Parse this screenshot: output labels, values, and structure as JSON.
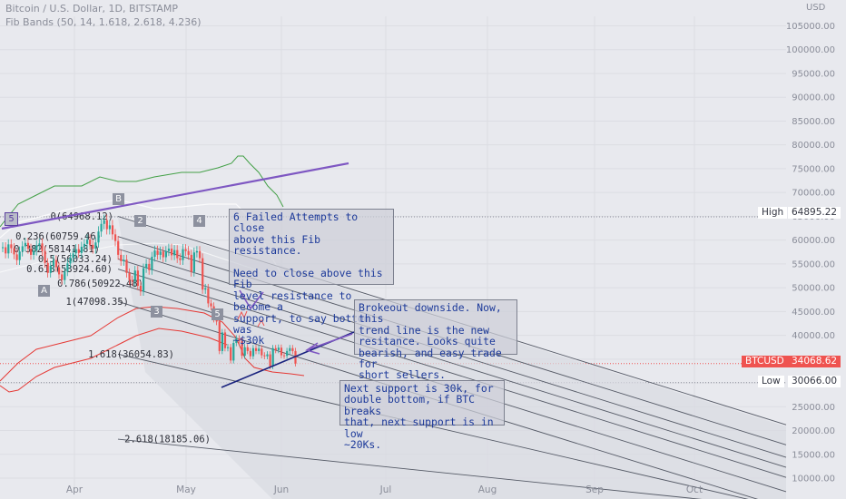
{
  "header": {
    "title": "Bitcoin / U.S. Dollar, 1D, BITSTAMP",
    "indicator": "Fib Bands (50, 14, 1.618, 2.618, 4.236)",
    "currency": "USD"
  },
  "colors": {
    "background": "#e8e9ee",
    "candle_up": "#26a69a",
    "candle_down": "#ef5350",
    "upper_band": "#43a047",
    "lower_band": "#e53935",
    "trendline_purple": "#7e57c2",
    "trendline_navy": "#1a237e",
    "annotation_text": "#1d3a9a",
    "fib_line": "#555a66"
  },
  "annotations": {
    "fib_resistance": "6 Failed Attempts to close\nabove this Fib resistance.\n\nNeed to close above this Fib\nlevel resistance to become a\nsupport, to say bottom was\n~$30k",
    "breakout": "Brokeout downside. Now, this\ntrend line is the new\nresitance. Looks quite\nbearish, and easy trade for\nshort sellers.",
    "next_support": "Next support is 30k, for\ndouble bottom, if BTC breaks\nthat, next support is in low\n~20Ks."
  },
  "wave_labels": [
    "5",
    "B",
    "2",
    "4",
    "A",
    "3",
    "5"
  ],
  "price_labels": {
    "high_label": "High",
    "high_value": "64895.22",
    "symbol": "BTCUSD",
    "last_value": "34068.62",
    "low_label": "Low",
    "low_value": "30066.00"
  },
  "chart_data": {
    "type": "line",
    "title": "Bitcoin / U.S. Dollar, 1D, BITSTAMP",
    "xlabel": "",
    "ylabel": "",
    "ylim": [
      10000,
      107000
    ],
    "grid": true,
    "x_tick_labels": [
      "Apr",
      "May",
      "Jun",
      "Jul",
      "Aug",
      "Sep",
      "Oct"
    ],
    "y_tick_labels": [
      "105000.00",
      "100000.00",
      "95000.00",
      "90000.00",
      "85000.00",
      "80000.00",
      "75000.00",
      "70000.00",
      "65000.00",
      "60000.00",
      "55000.00",
      "50000.00",
      "45000.00",
      "40000.00",
      "35000.00",
      "30000.00",
      "25000.00",
      "20000.00",
      "15000.00",
      "10000.00"
    ],
    "y_ticks": [
      105000,
      100000,
      95000,
      90000,
      85000,
      80000,
      75000,
      70000,
      65000,
      60000,
      55000,
      50000,
      45000,
      40000,
      35000,
      30000,
      25000,
      20000,
      15000,
      10000
    ],
    "high": 64895.22,
    "low": 30066.0,
    "last": 34068.62,
    "fib_levels": [
      {
        "label": "0(64968.12)",
        "value": 64968.12
      },
      {
        "label": "0.236(60759.46)",
        "value": 60759.46
      },
      {
        "label": "0.382(58141.81)",
        "value": 58141.81
      },
      {
        "label": "0.5(56033.24)",
        "value": 56033.24
      },
      {
        "label": "0.618(53924.60)",
        "value": 53924.6
      },
      {
        "label": "0.786(50922.48)",
        "value": 50922.48
      },
      {
        "label": "1(47098.35)",
        "value": 47098.35
      },
      {
        "label": "1.618(36054.83)",
        "value": 36054.83
      },
      {
        "label": "2.618(18185.06)",
        "value": 18185.06
      }
    ],
    "candles_close": [
      58500,
      57200,
      59100,
      58300,
      57000,
      55800,
      57600,
      58700,
      59400,
      58200,
      56900,
      57800,
      58900,
      59300,
      57700,
      55200,
      53100,
      54600,
      55800,
      54300,
      52800,
      51600,
      53400,
      55100,
      56300,
      57200,
      58100,
      57300,
      58600,
      59200,
      60100,
      59000,
      58200,
      59500,
      61800,
      63400,
      64200,
      62300,
      63100,
      61200,
      59800,
      56900,
      55600,
      55900,
      53100,
      51600,
      51300,
      53600,
      50400,
      49200,
      54100,
      55000,
      53700,
      56500,
      57800,
      56900,
      57600,
      56400,
      57700,
      58200,
      56800,
      57900,
      56200,
      55800,
      58100,
      57700,
      56900,
      53300,
      57400,
      57700,
      56200,
      49600,
      49900,
      46700,
      46100,
      43500,
      42900,
      36700,
      40600,
      37300,
      37500,
      34700,
      38400,
      39300,
      38800,
      35700,
      37500,
      36700,
      35600,
      37300,
      36700,
      37200,
      35800,
      35600,
      36000,
      33500,
      37300,
      36900,
      37400,
      35800,
      35700,
      36700,
      37300,
      36700,
      34068.62
    ],
    "upper_band_summary": [
      {
        "label": "Apr",
        "value": 66000
      },
      {
        "label": "May",
        "value": 70500
      },
      {
        "label": "Jun",
        "value": 68000
      }
    ],
    "lower_band_summary": [
      {
        "label": "Apr",
        "value": 38000
      },
      {
        "label": "May",
        "value": 44000
      },
      {
        "label": "Jun",
        "value": 32000
      }
    ]
  }
}
